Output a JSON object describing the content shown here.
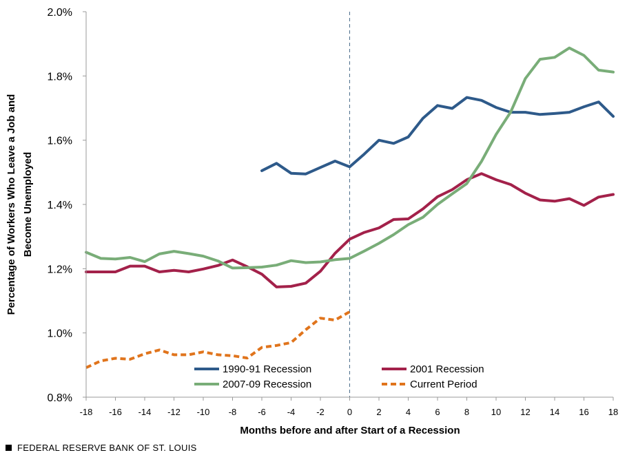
{
  "chart_data": {
    "type": "line",
    "title": "",
    "xlabel": "Months before and after Start of a Recession",
    "ylabel_lines": [
      "Percentage of Workers Who Leave a Job and",
      "Become Unemployed"
    ],
    "xlim": [
      -18,
      18
    ],
    "ylim": [
      0.8,
      2.0
    ],
    "x_ticks": [
      -18,
      -16,
      -14,
      -12,
      -10,
      -8,
      -6,
      -4,
      -2,
      0,
      2,
      4,
      6,
      8,
      10,
      12,
      14,
      16,
      18
    ],
    "y_ticks": [
      0.8,
      1.0,
      1.2,
      1.4,
      1.6,
      1.8,
      2.0
    ],
    "y_tick_labels": [
      "0.8%",
      "1.0%",
      "1.2%",
      "1.4%",
      "1.6%",
      "1.8%",
      "2.0%"
    ],
    "reference_line_x": 0,
    "series": [
      {
        "name": "1990-91 Recession",
        "color": "#2e5a8a",
        "style": "solid",
        "x": [
          -6,
          -5,
          -4,
          -3,
          -2,
          -1,
          0,
          1,
          2,
          3,
          4,
          5,
          6,
          7,
          8,
          9,
          10,
          11,
          12,
          13,
          14,
          15,
          16,
          17,
          18
        ],
        "values": [
          1.505,
          1.528,
          1.497,
          1.495,
          1.515,
          1.535,
          1.517,
          1.557,
          1.6,
          1.59,
          1.61,
          1.668,
          1.708,
          1.699,
          1.733,
          1.724,
          1.702,
          1.687,
          1.687,
          1.68,
          1.683,
          1.687,
          1.704,
          1.719,
          1.674
        ]
      },
      {
        "name": "2001 Recession",
        "color": "#a3214a",
        "style": "solid",
        "x": [
          -18,
          -17,
          -16,
          -15,
          -14,
          -13,
          -12,
          -11,
          -10,
          -9,
          -8,
          -7,
          -6,
          -5,
          -4,
          -3,
          -2,
          -1,
          0,
          1,
          2,
          3,
          4,
          5,
          6,
          7,
          8,
          9,
          10,
          11,
          12,
          13,
          14,
          15,
          16,
          17,
          18
        ],
        "values": [
          1.19,
          1.19,
          1.19,
          1.208,
          1.208,
          1.19,
          1.195,
          1.19,
          1.199,
          1.21,
          1.227,
          1.206,
          1.183,
          1.143,
          1.145,
          1.155,
          1.192,
          1.248,
          1.292,
          1.313,
          1.327,
          1.353,
          1.355,
          1.386,
          1.424,
          1.446,
          1.477,
          1.496,
          1.477,
          1.462,
          1.435,
          1.414,
          1.41,
          1.418,
          1.397,
          1.423,
          1.431
        ]
      },
      {
        "name": "2007-09 Recession",
        "color": "#79ad78",
        "style": "solid",
        "x": [
          -18,
          -17,
          -16,
          -15,
          -14,
          -13,
          -12,
          -11,
          -10,
          -9,
          -8,
          -7,
          -6,
          -5,
          -4,
          -3,
          -2,
          -1,
          0,
          1,
          2,
          3,
          4,
          5,
          6,
          7,
          8,
          9,
          10,
          11,
          12,
          13,
          14,
          15,
          16,
          17,
          18
        ],
        "values": [
          1.251,
          1.232,
          1.23,
          1.235,
          1.222,
          1.246,
          1.254,
          1.247,
          1.239,
          1.224,
          1.202,
          1.203,
          1.205,
          1.211,
          1.225,
          1.219,
          1.221,
          1.228,
          1.232,
          1.255,
          1.279,
          1.306,
          1.337,
          1.36,
          1.4,
          1.433,
          1.465,
          1.534,
          1.618,
          1.688,
          1.792,
          1.852,
          1.858,
          1.887,
          1.864,
          1.818,
          1.812
        ]
      },
      {
        "name": "Current Period",
        "color": "#e0741c",
        "style": "dashed",
        "x": [
          -18,
          -17,
          -16,
          -15,
          -14,
          -13,
          -12,
          -11,
          -10,
          -9,
          -8,
          -7,
          -6,
          -5,
          -4,
          -3,
          -2,
          -1,
          0
        ],
        "values": [
          0.892,
          0.913,
          0.921,
          0.918,
          0.935,
          0.947,
          0.932,
          0.932,
          0.941,
          0.932,
          0.929,
          0.922,
          0.955,
          0.961,
          0.97,
          1.01,
          1.046,
          1.04,
          1.066
        ]
      }
    ],
    "legend": [
      "1990-91 Recession",
      "2001 Recession",
      "2007-09 Recession",
      "Current Period"
    ]
  },
  "footer": {
    "source": "FEDERAL RESERVE BANK OF ST. LOUIS"
  }
}
